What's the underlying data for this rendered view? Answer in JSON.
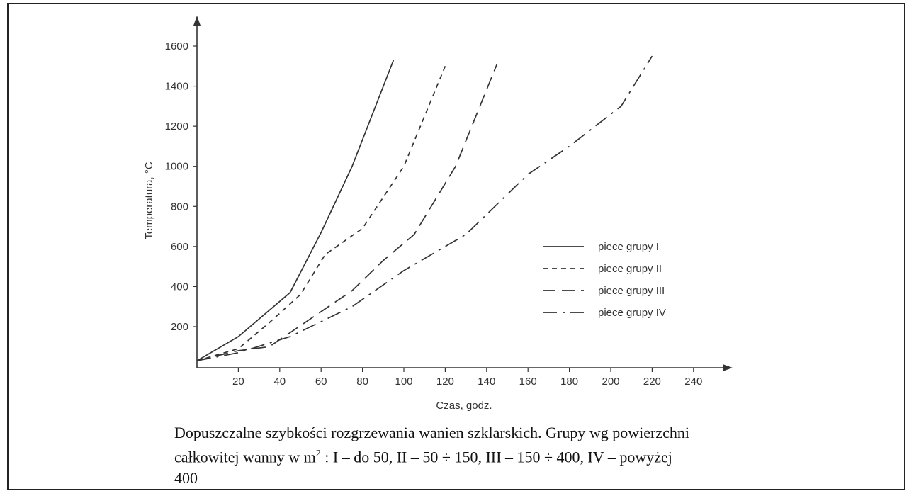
{
  "chart_data": {
    "type": "line",
    "xlabel": "Czas, godz.",
    "ylabel": "Temperatura, °C",
    "xlim": [
      0,
      250
    ],
    "ylim": [
      20,
      1650
    ],
    "xticks": [
      20,
      40,
      60,
      80,
      100,
      120,
      140,
      160,
      180,
      200,
      220,
      240
    ],
    "yticks": [
      200,
      400,
      600,
      800,
      1000,
      1200,
      1400,
      1600
    ],
    "grid": false,
    "legend_position": "right-center",
    "series": [
      {
        "name": "piece grupy I",
        "dash": "solid",
        "points": [
          [
            0,
            30
          ],
          [
            20,
            150
          ],
          [
            45,
            370
          ],
          [
            60,
            670
          ],
          [
            75,
            1000
          ],
          [
            95,
            1530
          ]
        ]
      },
      {
        "name": "piece grupy II",
        "dash": "short-dash",
        "points": [
          [
            0,
            30
          ],
          [
            20,
            90
          ],
          [
            35,
            220
          ],
          [
            50,
            360
          ],
          [
            62,
            560
          ],
          [
            80,
            690
          ],
          [
            100,
            1000
          ],
          [
            120,
            1500
          ]
        ]
      },
      {
        "name": "piece grupy III",
        "dash": "long-dash",
        "points": [
          [
            0,
            30
          ],
          [
            20,
            80
          ],
          [
            35,
            100
          ],
          [
            55,
            240
          ],
          [
            75,
            380
          ],
          [
            90,
            530
          ],
          [
            105,
            660
          ],
          [
            125,
            1000
          ],
          [
            145,
            1510
          ]
        ]
      },
      {
        "name": "piece grupy IV",
        "dash": "dash-dot",
        "points": [
          [
            0,
            30
          ],
          [
            20,
            70
          ],
          [
            45,
            150
          ],
          [
            75,
            300
          ],
          [
            100,
            480
          ],
          [
            130,
            660
          ],
          [
            160,
            960
          ],
          [
            180,
            1100
          ],
          [
            205,
            1300
          ],
          [
            220,
            1550
          ]
        ]
      }
    ]
  },
  "caption": {
    "line1": "Dopuszczalne szybkości rozgrzewania wanien szklarskich. Grupy wg powierzchni",
    "line2_pre": "całkowitej wanny w m",
    "line2_sup": "2",
    "line2_post": " : I – do 50, II – 50  ÷ 150, III – 150  ÷ 400, IV – powyżej",
    "line3": "400"
  }
}
